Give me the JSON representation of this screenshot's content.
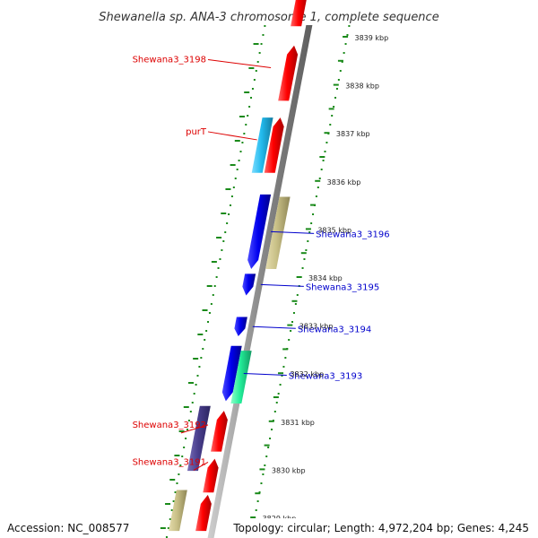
{
  "title": "Shewanella sp. ANA-3 chromosome 1, complete sequence",
  "footer": {
    "accession": "Accession: NC_008577",
    "topology": "Topology: circular; Length: 4,972,204 bp; Genes: 4,245"
  },
  "colors": {
    "red_gene": "#ee0000",
    "blue_gene": "#0000dd",
    "cyan_gene": "#22bbee",
    "khaki_gene": "#c8bf86",
    "green_gene": "#22ee99",
    "navy_gene": "#4a3f8e",
    "backbone": "#8a8a8a",
    "tick_green": "#1a8a1a",
    "label_red": "#dd0000",
    "label_blue": "#0000cc"
  },
  "scale": {
    "unit": "kbp",
    "ticks": [
      "3839 kbp",
      "3838 kbp",
      "3837 kbp",
      "3836 kbp",
      "3835 kbp",
      "3834 kbp",
      "3833 kbp",
      "3832 kbp",
      "3831 kbp",
      "3830 kbp",
      "3829 kbp"
    ]
  },
  "genes": [
    {
      "label": "",
      "color": "red",
      "strand": "forward",
      "start": 3839.2,
      "end": 3840.1
    },
    {
      "label": "Shewana3_3198",
      "color": "red",
      "strand": "forward",
      "start": 3837.65,
      "end": 3838.8
    },
    {
      "label": "purT",
      "color": "red",
      "strand": "forward",
      "start": 3836.15,
      "end": 3837.3
    },
    {
      "label": "",
      "color": "cyan",
      "strand": "reverse",
      "start": 3836.15,
      "end": 3837.3
    },
    {
      "label": "Shewana3_3196",
      "color": "blue",
      "strand": "reverse",
      "start": 3834.15,
      "end": 3835.7
    },
    {
      "label": "",
      "color": "khaki",
      "strand": "reverse",
      "start": 3834.15,
      "end": 3835.65
    },
    {
      "label": "Shewana3_3195",
      "color": "blue",
      "strand": "reverse",
      "start": 3833.6,
      "end": 3834.05
    },
    {
      "label": "Shewana3_3194",
      "color": "blue",
      "strand": "reverse",
      "start": 3832.75,
      "end": 3833.15
    },
    {
      "label": "Shewana3_3193",
      "color": "blue",
      "strand": "reverse",
      "start": 3831.4,
      "end": 3832.55
    },
    {
      "label": "",
      "color": "green",
      "strand": "reverse",
      "start": 3831.35,
      "end": 3832.45
    },
    {
      "label": "Shewana3_3192",
      "color": "navy",
      "strand": "forward",
      "start": 3829.95,
      "end": 3831.3
    },
    {
      "label": "",
      "color": "red",
      "strand": "forward",
      "start": 3830.35,
      "end": 3831.2
    },
    {
      "label": "Shewana3_3191",
      "color": "red",
      "strand": "forward",
      "start": 3829.5,
      "end": 3830.2
    },
    {
      "label": "",
      "color": "khaki",
      "strand": "forward",
      "start": 3828.7,
      "end": 3829.55
    },
    {
      "label": "",
      "color": "red",
      "strand": "forward",
      "start": 3828.7,
      "end": 3829.45
    }
  ]
}
